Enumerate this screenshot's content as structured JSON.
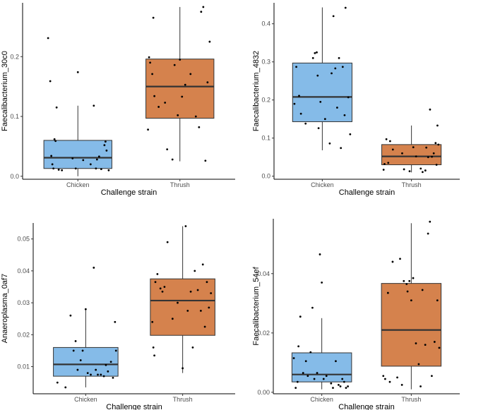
{
  "chart_data": [
    {
      "type": "box",
      "xlabel": "Challenge strain",
      "ylabel": "Faecalibacterium_30c0",
      "ylim": [
        -0.005,
        0.29
      ],
      "yticks": [
        0.0,
        0.1,
        0.2
      ],
      "ytick_labels": [
        "0.0",
        "0.1",
        "0.2"
      ],
      "categories": [
        "Chicken",
        "Thrush"
      ],
      "colors": [
        "#85bbe8",
        "#d5824d"
      ],
      "boxes": [
        {
          "min": 0.0,
          "q1": 0.013,
          "median": 0.031,
          "q3": 0.06,
          "max": 0.118
        },
        {
          "min": 0.025,
          "q1": 0.097,
          "median": 0.15,
          "q3": 0.196,
          "max": 0.283
        }
      ],
      "points": [
        [
          [
            -0.28,
            0.231
          ],
          [
            -0.26,
            0.159
          ],
          [
            -0.2,
            0.115
          ],
          [
            -0.22,
            0.062
          ],
          [
            -0.21,
            0.059
          ],
          [
            -0.25,
            0.034
          ],
          [
            -0.24,
            0.02
          ],
          [
            -0.23,
            0.013
          ],
          [
            -0.18,
            0.011
          ],
          [
            -0.15,
            0.01
          ],
          [
            -0.05,
            0.03
          ],
          [
            -0.02,
            0.013
          ],
          [
            0.0,
            0.174
          ],
          [
            0.05,
            0.027
          ],
          [
            0.12,
            0.02
          ],
          [
            0.15,
            0.118
          ],
          [
            0.18,
            0.028
          ],
          [
            0.2,
            0.033
          ],
          [
            0.22,
            0.012
          ],
          [
            0.25,
            0.052
          ],
          [
            0.26,
            0.058
          ],
          [
            0.27,
            0.043
          ],
          [
            0.29,
            0.01
          ],
          [
            0.17,
            0.013
          ]
        ],
        [
          [
            -0.3,
            0.078
          ],
          [
            -0.29,
            0.199
          ],
          [
            -0.28,
            0.19
          ],
          [
            -0.26,
            0.171
          ],
          [
            -0.25,
            0.265
          ],
          [
            -0.24,
            0.134
          ],
          [
            -0.2,
            0.116
          ],
          [
            -0.14,
            0.123
          ],
          [
            -0.12,
            0.045
          ],
          [
            -0.07,
            0.028
          ],
          [
            -0.05,
            0.186
          ],
          [
            -0.02,
            0.102
          ],
          [
            0.0,
            0.195
          ],
          [
            0.02,
            0.133
          ],
          [
            0.05,
            0.153
          ],
          [
            0.1,
            0.171
          ],
          [
            0.18,
            0.082
          ],
          [
            0.2,
            0.275
          ],
          [
            0.22,
            0.283
          ],
          [
            0.24,
            0.026
          ],
          [
            0.26,
            0.157
          ],
          [
            0.28,
            0.225
          ],
          [
            0.15,
            0.1
          ]
        ]
      ]
    },
    {
      "type": "box",
      "xlabel": "Challenge strain",
      "ylabel": "Faecalibacterium_4832",
      "ylim": [
        -0.008,
        0.455
      ],
      "yticks": [
        0.0,
        0.1,
        0.2,
        0.3,
        0.4
      ],
      "ytick_labels": [
        "0.0",
        "0.1",
        "0.2",
        "0.3",
        "0.4"
      ],
      "categories": [
        "Chicken",
        "Thrush"
      ],
      "colors": [
        "#85bbe8",
        "#d5824d"
      ],
      "boxes": [
        {
          "min": 0.068,
          "q1": 0.143,
          "median": 0.208,
          "q3": 0.297,
          "max": 0.443
        },
        {
          "min": 0.01,
          "q1": 0.03,
          "median": 0.052,
          "q3": 0.083,
          "max": 0.133
        }
      ],
      "points": [
        [
          [
            -0.3,
            0.19
          ],
          [
            -0.28,
            0.287
          ],
          [
            -0.25,
            0.211
          ],
          [
            -0.23,
            0.164
          ],
          [
            -0.18,
            0.138
          ],
          [
            -0.1,
            0.31
          ],
          [
            -0.08,
            0.323
          ],
          [
            -0.06,
            0.325
          ],
          [
            -0.05,
            0.264
          ],
          [
            -0.04,
            0.126
          ],
          [
            -0.02,
            0.195
          ],
          [
            0.03,
            0.15
          ],
          [
            0.08,
            0.086
          ],
          [
            0.12,
            0.42
          ],
          [
            0.14,
            0.283
          ],
          [
            0.16,
            0.18
          ],
          [
            0.18,
            0.31
          ],
          [
            0.2,
            0.074
          ],
          [
            0.22,
            0.287
          ],
          [
            0.24,
            0.16
          ],
          [
            0.25,
            0.442
          ],
          [
            0.28,
            0.207
          ],
          [
            0.3,
            0.11
          ],
          [
            0.1,
            0.27
          ]
        ],
        [
          [
            -0.3,
            0.017
          ],
          [
            -0.29,
            0.032
          ],
          [
            -0.27,
            0.097
          ],
          [
            -0.25,
            0.035
          ],
          [
            -0.23,
            0.092
          ],
          [
            -0.2,
            0.07
          ],
          [
            -0.1,
            0.06
          ],
          [
            -0.08,
            0.018
          ],
          [
            -0.02,
            0.013
          ],
          [
            0.02,
            0.076
          ],
          [
            0.05,
            0.052
          ],
          [
            0.1,
            0.02
          ],
          [
            0.12,
            0.011
          ],
          [
            0.16,
            0.075
          ],
          [
            0.18,
            0.05
          ],
          [
            0.2,
            0.175
          ],
          [
            0.22,
            0.051
          ],
          [
            0.24,
            0.06
          ],
          [
            0.26,
            0.087
          ],
          [
            0.27,
            0.03
          ],
          [
            0.28,
            0.133
          ],
          [
            0.29,
            0.083
          ],
          [
            0.15,
            0.015
          ]
        ]
      ]
    },
    {
      "type": "box",
      "xlabel": "Challenge strain",
      "ylabel": "Anaeroplasma_0af7",
      "ylim": [
        0.0015,
        0.055
      ],
      "yticks": [
        0.01,
        0.02,
        0.03,
        0.04,
        0.05
      ],
      "ytick_labels": [
        "0.01",
        "0.02",
        "0.03",
        "0.04",
        "0.05"
      ],
      "categories": [
        "Chicken",
        "Thrush"
      ],
      "colors": [
        "#85bbe8",
        "#d5824d"
      ],
      "boxes": [
        {
          "min": 0.0035,
          "q1": 0.007,
          "median": 0.0107,
          "q3": 0.016,
          "max": 0.028
        },
        {
          "min": 0.008,
          "q1": 0.0198,
          "median": 0.0307,
          "q3": 0.0375,
          "max": 0.054
        }
      ],
      "points": [
        [
          [
            -0.28,
            0.005
          ],
          [
            -0.2,
            0.0035
          ],
          [
            -0.15,
            0.026
          ],
          [
            -0.12,
            0.015
          ],
          [
            -0.1,
            0.018
          ],
          [
            -0.05,
            0.012
          ],
          [
            -0.03,
            0.015
          ],
          [
            0.0,
            0.028
          ],
          [
            0.02,
            0.008
          ],
          [
            0.05,
            0.0075
          ],
          [
            0.08,
            0.041
          ],
          [
            0.1,
            0.009
          ],
          [
            0.12,
            0.0075
          ],
          [
            0.15,
            0.0075
          ],
          [
            0.18,
            0.007
          ],
          [
            0.2,
            0.0105
          ],
          [
            0.22,
            0.0085
          ],
          [
            0.25,
            0.0115
          ],
          [
            0.27,
            0.0065
          ],
          [
            0.29,
            0.024
          ],
          [
            0.3,
            0.015
          ],
          [
            -0.08,
            0.009
          ]
        ],
        [
          [
            -0.3,
            0.024
          ],
          [
            -0.29,
            0.016
          ],
          [
            -0.28,
            0.0135
          ],
          [
            -0.27,
            0.0365
          ],
          [
            -0.25,
            0.039
          ],
          [
            -0.22,
            0.0345
          ],
          [
            -0.2,
            0.0335
          ],
          [
            -0.18,
            0.035
          ],
          [
            -0.15,
            0.049
          ],
          [
            -0.05,
            0.03
          ],
          [
            0.0,
            0.0095
          ],
          [
            0.03,
            0.054
          ],
          [
            0.05,
            0.0275
          ],
          [
            0.08,
            0.0335
          ],
          [
            0.1,
            0.016
          ],
          [
            0.12,
            0.04
          ],
          [
            0.15,
            0.034
          ],
          [
            0.18,
            0.0275
          ],
          [
            0.2,
            0.042
          ],
          [
            0.22,
            0.0225
          ],
          [
            0.24,
            0.0365
          ],
          [
            0.26,
            0.0285
          ],
          [
            0.28,
            0.033
          ],
          [
            -0.1,
            0.025
          ]
        ]
      ]
    },
    {
      "type": "box",
      "xlabel": "Challenge strain",
      "ylabel": "Faecalibacterium_54ef",
      "ylim": [
        -0.0005,
        0.0585
      ],
      "yticks": [
        0.0,
        0.02,
        0.04
      ],
      "ytick_labels": [
        "0.00",
        "0.02",
        "0.04"
      ],
      "categories": [
        "Chicken",
        "Thrush"
      ],
      "colors": [
        "#85bbe8",
        "#d5824d"
      ],
      "boxes": [
        {
          "min": 0.001,
          "q1": 0.0035,
          "median": 0.006,
          "q3": 0.0133,
          "max": 0.025
        },
        {
          "min": 0.001,
          "q1": 0.0088,
          "median": 0.021,
          "q3": 0.0367,
          "max": 0.057
        }
      ],
      "points": [
        [
          [
            -0.3,
            0.0115
          ],
          [
            -0.28,
            0.0015
          ],
          [
            -0.26,
            0.0035
          ],
          [
            -0.25,
            0.0155
          ],
          [
            -0.23,
            0.0255
          ],
          [
            -0.2,
            0.0065
          ],
          [
            -0.15,
            0.0055
          ],
          [
            -0.12,
            0.0135
          ],
          [
            -0.1,
            0.0285
          ],
          [
            -0.08,
            0.0045
          ],
          [
            -0.05,
            0.0065
          ],
          [
            -0.02,
            0.0465
          ],
          [
            0.0,
            0.037
          ],
          [
            0.02,
            0.0045
          ],
          [
            0.05,
            0.0055
          ],
          [
            0.1,
            0.003
          ],
          [
            0.12,
            0.0015
          ],
          [
            0.15,
            0.0105
          ],
          [
            0.18,
            0.0025
          ],
          [
            0.2,
            0.002
          ],
          [
            0.22,
            0.0045
          ],
          [
            0.24,
            0.0035
          ],
          [
            0.26,
            0.0015
          ],
          [
            0.28,
            0.002
          ],
          [
            -0.17,
            0.0105
          ]
        ],
        [
          [
            -0.3,
            0.0055
          ],
          [
            -0.28,
            0.0045
          ],
          [
            -0.25,
            0.0335
          ],
          [
            -0.23,
            0.0035
          ],
          [
            -0.2,
            0.044
          ],
          [
            -0.15,
            0.005
          ],
          [
            -0.1,
            0.0025
          ],
          [
            -0.08,
            0.0375
          ],
          [
            -0.05,
            0.0365
          ],
          [
            -0.04,
            0.034
          ],
          [
            -0.02,
            0.0375
          ],
          [
            0.0,
            0.031
          ],
          [
            0.02,
            0.0385
          ],
          [
            0.05,
            0.0165
          ],
          [
            0.08,
            0.0095
          ],
          [
            0.1,
            0.002
          ],
          [
            0.12,
            0.0345
          ],
          [
            0.15,
            0.016
          ],
          [
            0.18,
            0.0535
          ],
          [
            0.2,
            0.0575
          ],
          [
            0.22,
            0.0055
          ],
          [
            0.25,
            0.017
          ],
          [
            0.28,
            0.031
          ],
          [
            0.3,
            0.015
          ],
          [
            -0.12,
            0.045
          ]
        ]
      ]
    }
  ]
}
